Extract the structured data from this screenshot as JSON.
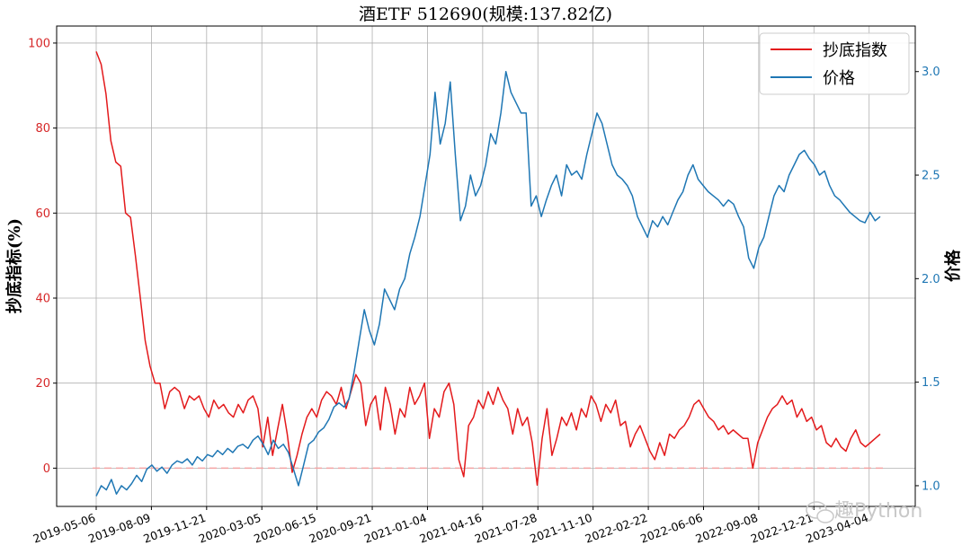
{
  "chart_data": {
    "type": "line",
    "title": "酒ETF  512690(规模:137.82亿)",
    "ylabel_left": "抄底指标(%)",
    "ylabel_right": "价格",
    "ylim_left": [
      -9,
      104
    ],
    "ylim_right": [
      0.9,
      3.22
    ],
    "yticks_left": [
      "0",
      "20",
      "40",
      "60",
      "80",
      "100"
    ],
    "yticks_left_values": [
      0,
      20,
      40,
      60,
      80,
      100
    ],
    "yticks_right": [
      "1.0",
      "1.5",
      "2.0",
      "2.5",
      "3.0"
    ],
    "yticks_right_values": [
      1.0,
      1.5,
      2.0,
      2.5,
      3.0
    ],
    "xticks": [
      "2019-05-06",
      "2019-08-09",
      "2019-11-21",
      "2020-03-05",
      "2020-06-15",
      "2020-09-21",
      "2021-01-04",
      "2021-04-16",
      "2021-07-28",
      "2021-11-10",
      "2022-02-22",
      "2022-06-06",
      "2022-09-08",
      "2022-12-21",
      "2023-04-04"
    ],
    "grid": true,
    "legend_position": "top-right",
    "reference_line": {
      "axis": "left",
      "value": 0,
      "color": "#f4a3a3",
      "style": "dashed"
    },
    "series": [
      {
        "name": "抄底指数",
        "axis": "left",
        "color": "#e31a1c",
        "points": [
          [
            0,
            98
          ],
          [
            1,
            95
          ],
          [
            2,
            88
          ],
          [
            3,
            77
          ],
          [
            4,
            72
          ],
          [
            5,
            71
          ],
          [
            6,
            60
          ],
          [
            7,
            59
          ],
          [
            8,
            50
          ],
          [
            9,
            40
          ],
          [
            10,
            30
          ],
          [
            11,
            24
          ],
          [
            12,
            20
          ],
          [
            13,
            20
          ],
          [
            14,
            14
          ],
          [
            15,
            18
          ],
          [
            16,
            19
          ],
          [
            17,
            18
          ],
          [
            18,
            14
          ],
          [
            19,
            17
          ],
          [
            20,
            16
          ],
          [
            21,
            17
          ],
          [
            22,
            14
          ],
          [
            23,
            12
          ],
          [
            24,
            16
          ],
          [
            25,
            14
          ],
          [
            26,
            15
          ],
          [
            27,
            13
          ],
          [
            28,
            12
          ],
          [
            29,
            15
          ],
          [
            30,
            13
          ],
          [
            31,
            16
          ],
          [
            32,
            17
          ],
          [
            33,
            14
          ],
          [
            34,
            5
          ],
          [
            35,
            12
          ],
          [
            36,
            3
          ],
          [
            37,
            9
          ],
          [
            38,
            15
          ],
          [
            39,
            8
          ],
          [
            40,
            -1
          ],
          [
            41,
            3
          ],
          [
            42,
            8
          ],
          [
            43,
            12
          ],
          [
            44,
            14
          ],
          [
            45,
            12
          ],
          [
            46,
            16
          ],
          [
            47,
            18
          ],
          [
            48,
            17
          ],
          [
            49,
            15
          ],
          [
            50,
            19
          ],
          [
            51,
            14
          ],
          [
            52,
            18
          ],
          [
            53,
            22
          ],
          [
            54,
            20
          ],
          [
            55,
            10
          ],
          [
            56,
            15
          ],
          [
            57,
            17
          ],
          [
            58,
            9
          ],
          [
            59,
            19
          ],
          [
            60,
            15
          ],
          [
            61,
            8
          ],
          [
            62,
            14
          ],
          [
            63,
            12
          ],
          [
            64,
            19
          ],
          [
            65,
            15
          ],
          [
            66,
            17
          ],
          [
            67,
            20
          ],
          [
            68,
            7
          ],
          [
            69,
            14
          ],
          [
            70,
            12
          ],
          [
            71,
            18
          ],
          [
            72,
            20
          ],
          [
            73,
            15
          ],
          [
            74,
            2
          ],
          [
            75,
            -2
          ],
          [
            76,
            10
          ],
          [
            77,
            12
          ],
          [
            78,
            16
          ],
          [
            79,
            14
          ],
          [
            80,
            18
          ],
          [
            81,
            15
          ],
          [
            82,
            19
          ],
          [
            83,
            16
          ],
          [
            84,
            14
          ],
          [
            85,
            8
          ],
          [
            86,
            14
          ],
          [
            87,
            10
          ],
          [
            88,
            12
          ],
          [
            89,
            6
          ],
          [
            90,
            -4
          ],
          [
            91,
            7
          ],
          [
            92,
            14
          ],
          [
            93,
            3
          ],
          [
            94,
            7
          ],
          [
            95,
            12
          ],
          [
            96,
            10
          ],
          [
            97,
            13
          ],
          [
            98,
            9
          ],
          [
            99,
            14
          ],
          [
            100,
            12
          ],
          [
            101,
            17
          ],
          [
            102,
            15
          ],
          [
            103,
            11
          ],
          [
            104,
            15
          ],
          [
            105,
            13
          ],
          [
            106,
            16
          ],
          [
            107,
            10
          ],
          [
            108,
            11
          ],
          [
            109,
            5
          ],
          [
            110,
            8
          ],
          [
            111,
            10
          ],
          [
            112,
            7
          ],
          [
            113,
            4
          ],
          [
            114,
            2
          ],
          [
            115,
            6
          ],
          [
            116,
            3
          ],
          [
            117,
            8
          ],
          [
            118,
            7
          ],
          [
            119,
            9
          ],
          [
            120,
            10
          ],
          [
            121,
            12
          ],
          [
            122,
            15
          ],
          [
            123,
            16
          ],
          [
            124,
            14
          ],
          [
            125,
            12
          ],
          [
            126,
            11
          ],
          [
            127,
            9
          ],
          [
            128,
            10
          ],
          [
            129,
            8
          ],
          [
            130,
            9
          ],
          [
            131,
            8
          ],
          [
            132,
            7
          ],
          [
            133,
            7
          ],
          [
            134,
            0
          ],
          [
            135,
            6
          ],
          [
            136,
            9
          ],
          [
            137,
            12
          ],
          [
            138,
            14
          ],
          [
            139,
            15
          ],
          [
            140,
            17
          ],
          [
            141,
            15
          ],
          [
            142,
            16
          ],
          [
            143,
            12
          ],
          [
            144,
            14
          ],
          [
            145,
            11
          ],
          [
            146,
            12
          ],
          [
            147,
            9
          ],
          [
            148,
            10
          ],
          [
            149,
            6
          ],
          [
            150,
            5
          ],
          [
            151,
            7
          ],
          [
            152,
            5
          ],
          [
            153,
            4
          ],
          [
            154,
            7
          ],
          [
            155,
            9
          ],
          [
            156,
            6
          ],
          [
            157,
            5
          ],
          [
            158,
            6
          ],
          [
            159,
            7
          ],
          [
            160,
            8
          ]
        ]
      },
      {
        "name": "价格",
        "axis": "right",
        "color": "#1f77b4",
        "points": [
          [
            0,
            0.95
          ],
          [
            1,
            1.0
          ],
          [
            2,
            0.98
          ],
          [
            3,
            1.03
          ],
          [
            4,
            0.96
          ],
          [
            5,
            1.0
          ],
          [
            6,
            0.98
          ],
          [
            7,
            1.01
          ],
          [
            8,
            1.05
          ],
          [
            9,
            1.02
          ],
          [
            10,
            1.08
          ],
          [
            11,
            1.1
          ],
          [
            12,
            1.07
          ],
          [
            13,
            1.09
          ],
          [
            14,
            1.06
          ],
          [
            15,
            1.1
          ],
          [
            16,
            1.12
          ],
          [
            17,
            1.11
          ],
          [
            18,
            1.13
          ],
          [
            19,
            1.1
          ],
          [
            20,
            1.14
          ],
          [
            21,
            1.12
          ],
          [
            22,
            1.15
          ],
          [
            23,
            1.14
          ],
          [
            24,
            1.17
          ],
          [
            25,
            1.15
          ],
          [
            26,
            1.18
          ],
          [
            27,
            1.16
          ],
          [
            28,
            1.19
          ],
          [
            29,
            1.2
          ],
          [
            30,
            1.18
          ],
          [
            31,
            1.22
          ],
          [
            32,
            1.24
          ],
          [
            33,
            1.2
          ],
          [
            34,
            1.15
          ],
          [
            35,
            1.22
          ],
          [
            36,
            1.18
          ],
          [
            37,
            1.2
          ],
          [
            38,
            1.16
          ],
          [
            39,
            1.08
          ],
          [
            40,
            1.0
          ],
          [
            41,
            1.1
          ],
          [
            42,
            1.2
          ],
          [
            43,
            1.22
          ],
          [
            44,
            1.26
          ],
          [
            45,
            1.28
          ],
          [
            46,
            1.32
          ],
          [
            47,
            1.38
          ],
          [
            48,
            1.4
          ],
          [
            49,
            1.38
          ],
          [
            50,
            1.42
          ],
          [
            51,
            1.55
          ],
          [
            52,
            1.7
          ],
          [
            53,
            1.85
          ],
          [
            54,
            1.75
          ],
          [
            55,
            1.68
          ],
          [
            56,
            1.78
          ],
          [
            57,
            1.95
          ],
          [
            58,
            1.9
          ],
          [
            59,
            1.85
          ],
          [
            60,
            1.95
          ],
          [
            61,
            2.0
          ],
          [
            62,
            2.12
          ],
          [
            63,
            2.2
          ],
          [
            64,
            2.3
          ],
          [
            65,
            2.45
          ],
          [
            66,
            2.6
          ],
          [
            67,
            2.9
          ],
          [
            68,
            2.65
          ],
          [
            69,
            2.75
          ],
          [
            70,
            2.95
          ],
          [
            71,
            2.6
          ],
          [
            72,
            2.28
          ],
          [
            73,
            2.35
          ],
          [
            74,
            2.5
          ],
          [
            75,
            2.4
          ],
          [
            76,
            2.45
          ],
          [
            77,
            2.55
          ],
          [
            78,
            2.7
          ],
          [
            79,
            2.65
          ],
          [
            80,
            2.8
          ],
          [
            81,
            3.0
          ],
          [
            82,
            2.9
          ],
          [
            83,
            2.85
          ],
          [
            84,
            2.8
          ],
          [
            85,
            2.8
          ],
          [
            86,
            2.35
          ],
          [
            87,
            2.4
          ],
          [
            88,
            2.3
          ],
          [
            89,
            2.38
          ],
          [
            90,
            2.45
          ],
          [
            91,
            2.5
          ],
          [
            92,
            2.4
          ],
          [
            93,
            2.55
          ],
          [
            94,
            2.5
          ],
          [
            95,
            2.52
          ],
          [
            96,
            2.48
          ],
          [
            97,
            2.6
          ],
          [
            98,
            2.7
          ],
          [
            99,
            2.8
          ],
          [
            100,
            2.75
          ],
          [
            101,
            2.65
          ],
          [
            102,
            2.55
          ],
          [
            103,
            2.5
          ],
          [
            104,
            2.48
          ],
          [
            105,
            2.45
          ],
          [
            106,
            2.4
          ],
          [
            107,
            2.3
          ],
          [
            108,
            2.25
          ],
          [
            109,
            2.2
          ],
          [
            110,
            2.28
          ],
          [
            111,
            2.25
          ],
          [
            112,
            2.3
          ],
          [
            113,
            2.26
          ],
          [
            114,
            2.32
          ],
          [
            115,
            2.38
          ],
          [
            116,
            2.42
          ],
          [
            117,
            2.5
          ],
          [
            118,
            2.55
          ],
          [
            119,
            2.48
          ],
          [
            120,
            2.45
          ],
          [
            121,
            2.42
          ],
          [
            122,
            2.4
          ],
          [
            123,
            2.38
          ],
          [
            124,
            2.35
          ],
          [
            125,
            2.38
          ],
          [
            126,
            2.36
          ],
          [
            127,
            2.3
          ],
          [
            128,
            2.25
          ],
          [
            129,
            2.1
          ],
          [
            130,
            2.05
          ],
          [
            131,
            2.15
          ],
          [
            132,
            2.2
          ],
          [
            133,
            2.3
          ],
          [
            134,
            2.4
          ],
          [
            135,
            2.45
          ],
          [
            136,
            2.42
          ],
          [
            137,
            2.5
          ],
          [
            138,
            2.55
          ],
          [
            139,
            2.6
          ],
          [
            140,
            2.62
          ],
          [
            141,
            2.58
          ],
          [
            142,
            2.55
          ],
          [
            143,
            2.5
          ],
          [
            144,
            2.52
          ],
          [
            145,
            2.45
          ],
          [
            146,
            2.4
          ],
          [
            147,
            2.38
          ],
          [
            148,
            2.35
          ],
          [
            149,
            2.32
          ],
          [
            150,
            2.3
          ],
          [
            151,
            2.28
          ],
          [
            152,
            2.27
          ],
          [
            153,
            2.32
          ],
          [
            154,
            2.28
          ],
          [
            155,
            2.3
          ]
        ]
      }
    ]
  },
  "watermark": "趣Python"
}
